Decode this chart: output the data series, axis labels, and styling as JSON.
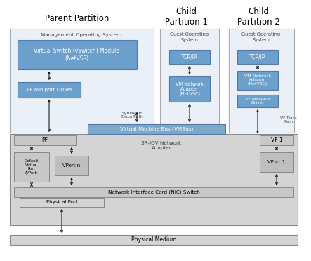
{
  "title_parent": "Parent Partition",
  "title_child1": "Child\nPartition 1",
  "title_child2": "Child\nPartition 2",
  "color_blue_dark": "#6B9FCC",
  "color_blue_light": "#EAF0F8",
  "color_gray_outer": "#D4D4D4",
  "color_gray_box": "#C8C8C8",
  "color_gray_inner": "#BEBEBE",
  "color_white": "#FFFFFF",
  "color_vmbus": "#7BAAC8",
  "color_child_bg": "#EBF0F8",
  "color_text_dark": "#222222",
  "color_text_med": "#444444"
}
